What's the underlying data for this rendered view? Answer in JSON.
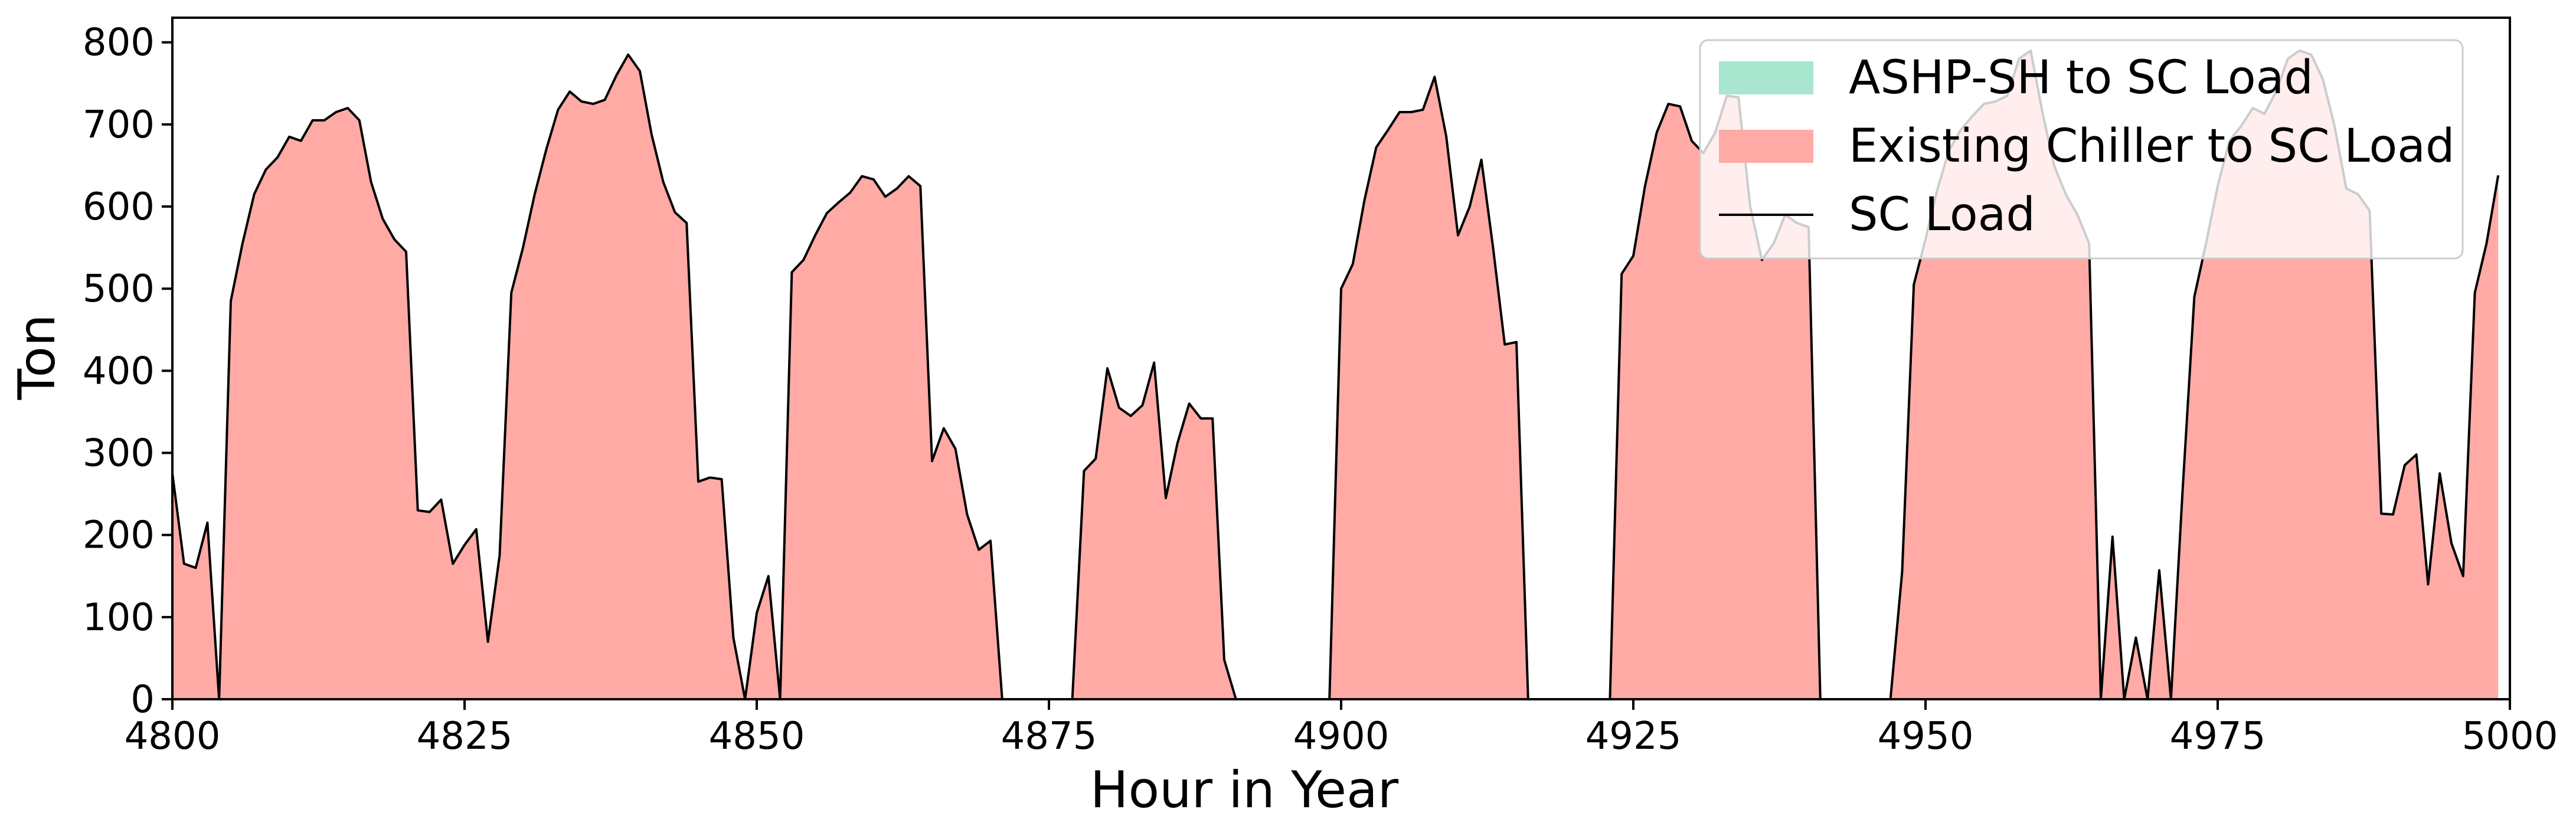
{
  "chart_data": {
    "type": "area",
    "xlabel": "Hour in Year",
    "ylabel": "Ton",
    "xlim": [
      4800,
      5000
    ],
    "ylim": [
      0,
      830
    ],
    "xticks": [
      4800,
      4825,
      4850,
      4875,
      4900,
      4925,
      4950,
      4975,
      5000
    ],
    "yticks": [
      0,
      100,
      200,
      300,
      400,
      500,
      600,
      700,
      800
    ],
    "legend_position": "upper-right",
    "series": [
      {
        "name": "ASHP-SH to SC Load",
        "kind": "stacked-area",
        "color": "#a8e6cf",
        "values": "zero"
      },
      {
        "name": "Existing Chiller to SC Load",
        "kind": "stacked-area",
        "color": "#ffaaa5",
        "values": "equals SC Load"
      },
      {
        "name": "SC Load",
        "kind": "line",
        "color": "#000000"
      }
    ],
    "x": [
      4800,
      4801,
      4802,
      4803,
      4804,
      4805,
      4806,
      4807,
      4808,
      4809,
      4810,
      4811,
      4812,
      4813,
      4814,
      4815,
      4816,
      4817,
      4818,
      4819,
      4820,
      4821,
      4822,
      4823,
      4824,
      4825,
      4826,
      4827,
      4828,
      4829,
      4830,
      4831,
      4832,
      4833,
      4834,
      4835,
      4836,
      4837,
      4838,
      4839,
      4840,
      4841,
      4842,
      4843,
      4844,
      4845,
      4846,
      4847,
      4848,
      4849,
      4850,
      4851,
      4852,
      4853,
      4854,
      4855,
      4856,
      4857,
      4858,
      4859,
      4860,
      4861,
      4862,
      4863,
      4864,
      4865,
      4866,
      4867,
      4868,
      4869,
      4870,
      4871,
      4872,
      4873,
      4874,
      4875,
      4876,
      4877,
      4878,
      4879,
      4880,
      4881,
      4882,
      4883,
      4884,
      4885,
      4886,
      4887,
      4888,
      4889,
      4890,
      4891,
      4892,
      4893,
      4894,
      4895,
      4896,
      4897,
      4898,
      4899,
      4900,
      4901,
      4902,
      4903,
      4904,
      4905,
      4906,
      4907,
      4908,
      4909,
      4910,
      4911,
      4912,
      4913,
      4914,
      4915,
      4916,
      4917,
      4918,
      4919,
      4920,
      4921,
      4922,
      4923,
      4924,
      4925,
      4926,
      4927,
      4928,
      4929,
      4930,
      4931,
      4932,
      4933,
      4934,
      4935,
      4936,
      4937,
      4938,
      4939,
      4940,
      4941,
      4942,
      4943,
      4944,
      4945,
      4946,
      4947,
      4948,
      4949,
      4950,
      4951,
      4952,
      4953,
      4954,
      4955,
      4956,
      4957,
      4958,
      4959,
      4960,
      4961,
      4962,
      4963,
      4964,
      4965,
      4966,
      4967,
      4968,
      4969,
      4970,
      4971,
      4972,
      4973,
      4974,
      4975,
      4976,
      4977,
      4978,
      4979,
      4980,
      4981,
      4982,
      4983,
      4984,
      4985,
      4986,
      4987,
      4988,
      4989,
      4990,
      4991,
      4992,
      4993,
      4994,
      4995,
      4996,
      4997,
      4998,
      4999
    ],
    "sc_load": [
      275,
      165,
      160,
      215,
      0,
      485,
      555,
      615,
      645,
      660,
      685,
      680,
      705,
      705,
      715,
      720,
      705,
      630,
      585,
      560,
      545,
      230,
      228,
      243,
      165,
      188,
      207,
      70,
      175,
      495,
      550,
      615,
      670,
      718,
      740,
      728,
      725,
      730,
      760,
      785,
      765,
      688,
      630,
      593,
      580,
      265,
      270,
      268,
      75,
      0,
      105,
      150,
      0,
      520,
      535,
      565,
      592,
      605,
      617,
      637,
      633,
      612,
      622,
      637,
      625,
      290,
      330,
      305,
      225,
      182,
      193,
      0,
      0,
      0,
      0,
      0,
      0,
      0,
      278,
      293,
      403,
      355,
      345,
      358,
      410,
      245,
      312,
      360,
      342,
      342,
      48,
      0,
      0,
      0,
      0,
      0,
      0,
      0,
      0,
      0,
      500,
      530,
      608,
      672,
      693,
      715,
      715,
      718,
      758,
      685,
      565,
      600,
      657,
      550,
      432,
      435,
      0,
      0,
      0,
      0,
      0,
      0,
      0,
      0,
      518,
      540,
      625,
      690,
      725,
      722,
      680,
      665,
      690,
      735,
      733,
      600,
      535,
      555,
      590,
      580,
      575,
      0,
      0,
      0,
      0,
      0,
      0,
      0,
      155,
      505,
      560,
      620,
      668,
      693,
      710,
      725,
      728,
      735,
      780,
      790,
      715,
      650,
      615,
      590,
      555,
      0,
      198,
      0,
      75,
      0,
      157,
      0,
      255,
      490,
      555,
      625,
      680,
      698,
      720,
      713,
      740,
      780,
      790,
      785,
      755,
      698,
      622,
      615,
      595,
      226,
      225,
      285,
      298,
      140,
      275,
      190,
      150,
      495,
      555,
      638
    ]
  }
}
